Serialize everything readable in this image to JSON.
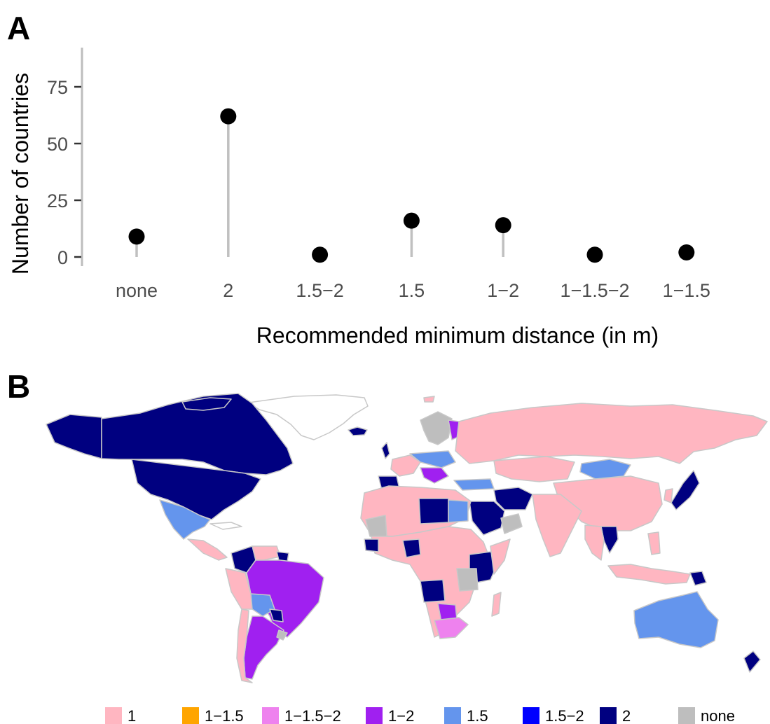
{
  "panels": {
    "a_label": "A",
    "b_label": "B"
  },
  "chart_data": [
    {
      "type": "lollipop",
      "xlabel": "Recommended minimum distance (in m)",
      "ylabel": "Number of countries",
      "categories": [
        "none",
        "2",
        "1.5−2",
        "1.5",
        "1−2",
        "1−1.5−2",
        "1−1.5"
      ],
      "values": [
        9,
        62,
        1,
        16,
        14,
        1,
        2
      ],
      "ylim": [
        0,
        92
      ],
      "yticks": [
        0,
        25,
        50,
        75
      ],
      "grid": false,
      "stem_color": "#c0c0c0",
      "point_color": "#000000"
    },
    {
      "type": "choropleth",
      "legend_position": "bottom",
      "legend": [
        {
          "label": "1",
          "color": "#ffb6c1"
        },
        {
          "label": "1−1.5",
          "color": "#ffa500"
        },
        {
          "label": "1−1.5−2",
          "color": "#ee82ee"
        },
        {
          "label": "1−2",
          "color": "#a020f0"
        },
        {
          "label": "1.5",
          "color": "#6495ed"
        },
        {
          "label": "1.5−2",
          "color": "#0000ff"
        },
        {
          "label": "2",
          "color": "#000080"
        },
        {
          "label": "none",
          "color": "#bebebe"
        }
      ]
    }
  ]
}
